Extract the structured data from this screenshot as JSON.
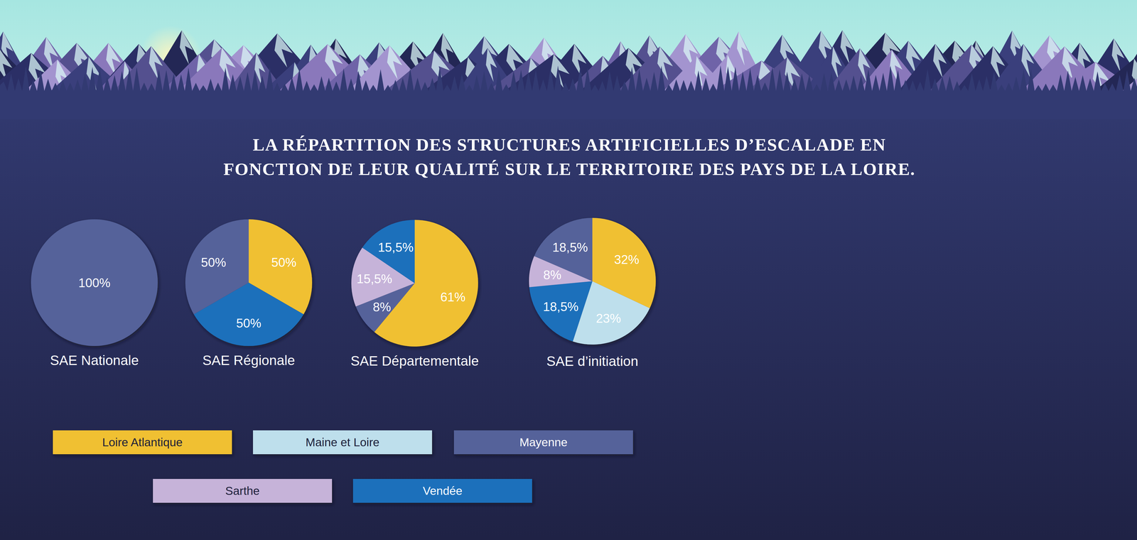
{
  "title": "LA RÉPARTITION DES STRUCTURES ARTIFICIELLES D’ESCALADE EN\nFONCTION DE LEUR QUALITÉ SUR LE TERRITOIRE DES PAYS DE LA LOIRE.",
  "departments": [
    {
      "name": "Loire Atlantique",
      "color": "#f0c030"
    },
    {
      "name": "Maine et Loire",
      "color": "#bedfec"
    },
    {
      "name": "Mayenne",
      "color": "#54629a"
    },
    {
      "name": "Sarthe",
      "color": "#c6b3d9"
    },
    {
      "name": "Vendée",
      "color": "#1d6fbb"
    }
  ],
  "chart_data": [
    {
      "type": "pie",
      "title": "SAE Nationale",
      "data_labels": true,
      "categories": [
        "Mayenne"
      ],
      "values": [
        100
      ],
      "value_labels": [
        "100%"
      ]
    },
    {
      "type": "pie",
      "title": "SAE Régionale",
      "data_labels": true,
      "categories": [
        "Loire Atlantique",
        "Vendée",
        "Mayenne"
      ],
      "values": [
        50,
        50,
        50
      ],
      "value_labels": [
        "50%",
        "50%",
        "50%"
      ]
    },
    {
      "type": "pie",
      "title": "SAE Départementale",
      "data_labels": true,
      "categories": [
        "Loire Atlantique",
        "Mayenne",
        "Sarthe",
        "Vendée"
      ],
      "values": [
        61,
        8,
        15.5,
        15.5
      ],
      "value_labels": [
        "61%",
        "8%",
        "15,5%",
        "15,5%"
      ]
    },
    {
      "type": "pie",
      "title": "SAE d’initiation",
      "data_labels": true,
      "categories": [
        "Loire Atlantique",
        "Maine et Loire",
        "Vendée",
        "Sarthe",
        "Mayenne"
      ],
      "values": [
        32,
        23,
        18.5,
        8,
        18.5
      ],
      "value_labels": [
        "32%",
        "23%",
        "18,5%",
        "8%",
        "18,5%"
      ]
    }
  ]
}
